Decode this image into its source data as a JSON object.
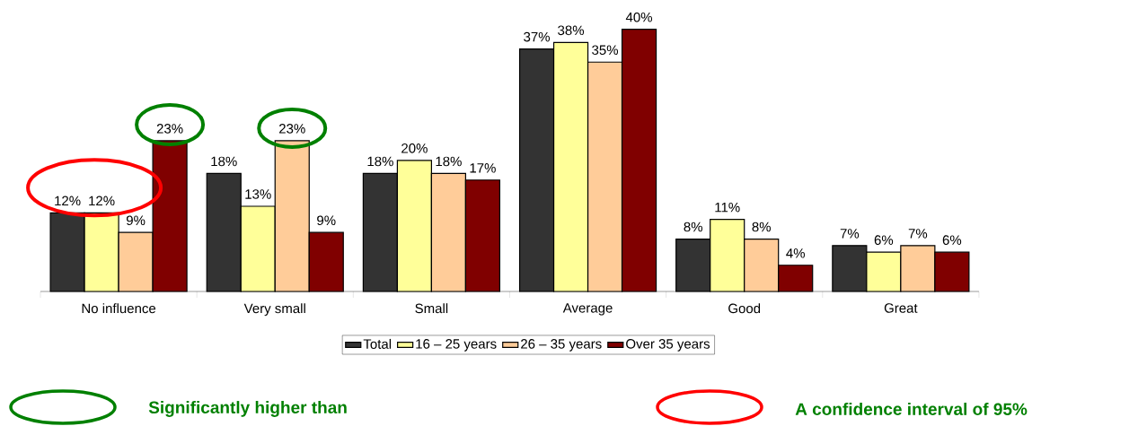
{
  "chart_data": {
    "type": "bar",
    "categories": [
      "No influence",
      "Very small",
      "Small",
      "Average",
      "Good",
      "Great"
    ],
    "series": [
      {
        "name": "Total",
        "color": "#333333",
        "values": [
          12,
          18,
          18,
          37,
          8,
          7
        ],
        "value_labels": [
          "12%",
          "18%",
          "18%",
          "37%",
          "8%",
          "7%"
        ]
      },
      {
        "name": "16 – 25 years",
        "color": "#ffff99",
        "values": [
          12,
          13,
          20,
          38,
          11,
          6
        ],
        "value_labels": [
          "12%",
          "13%",
          "20%",
          "38%",
          "11%",
          "6%"
        ]
      },
      {
        "name": "26 – 35 years",
        "color": "#ffcc99",
        "values": [
          9,
          23,
          18,
          35,
          8,
          7
        ],
        "value_labels": [
          "9%",
          "23%",
          "18%",
          "35%",
          "8%",
          "7%"
        ]
      },
      {
        "name": "Over 35 years",
        "color": "#800000",
        "values": [
          23,
          9,
          17,
          40,
          4,
          6
        ],
        "value_labels": [
          "23%",
          "9%",
          "17%",
          "40%",
          "4%",
          "6%"
        ]
      }
    ],
    "legend": "bottom",
    "annotations": [
      "Significantly higher than",
      "A confidence interval of 95%"
    ]
  }
}
